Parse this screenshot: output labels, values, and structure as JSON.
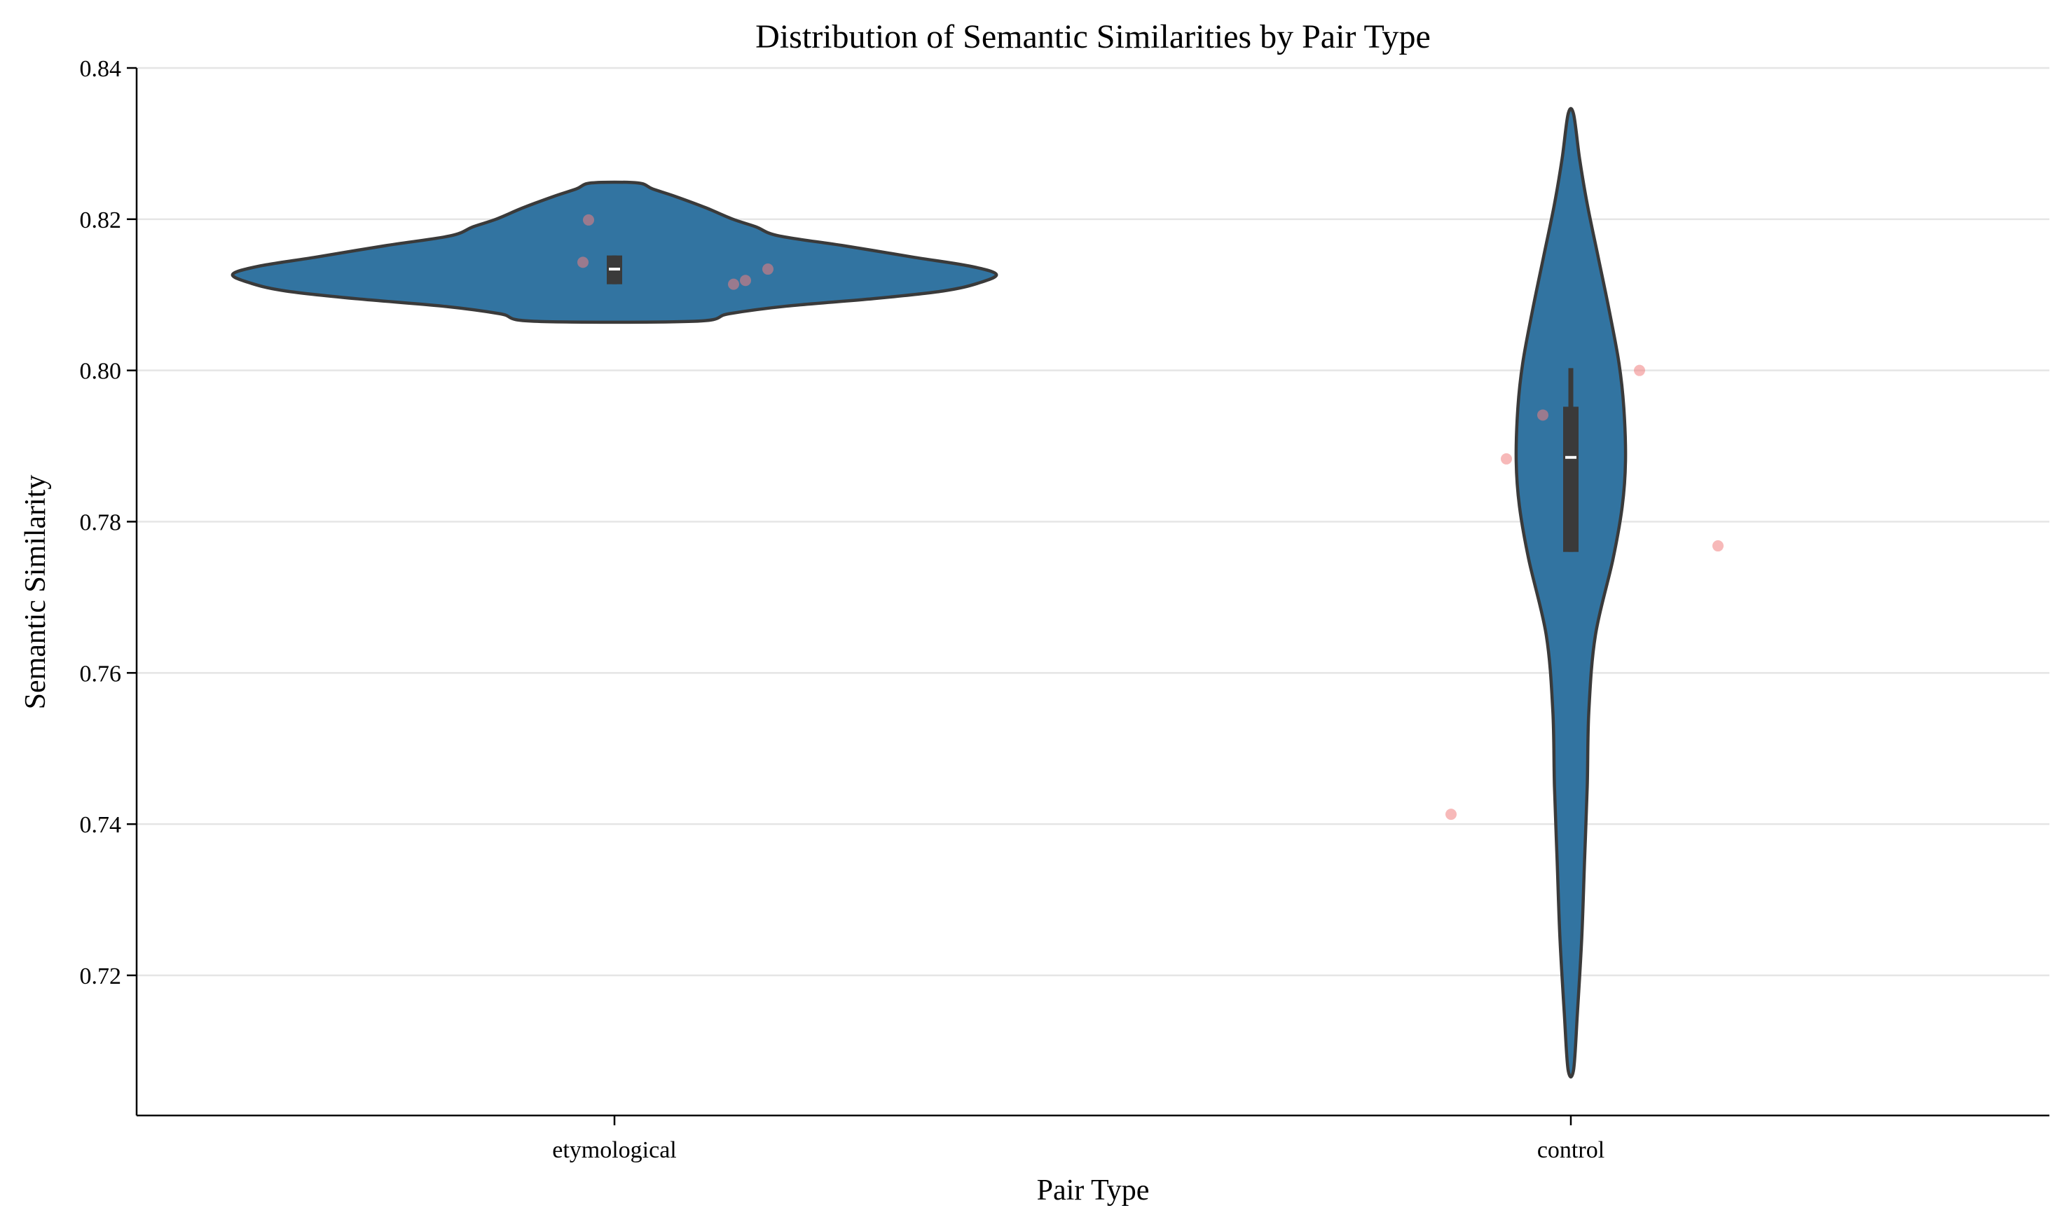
{
  "chart_data": {
    "type": "violin",
    "title": "Distribution of Semantic Similarities by Pair Type",
    "xlabel": "Pair Type",
    "ylabel": "Semantic Similarity",
    "ylim": [
      0.702,
      0.84
    ],
    "yticks": [
      "0.72",
      "0.74",
      "0.76",
      "0.78",
      "0.80",
      "0.82",
      "0.84"
    ],
    "grid": "horizontal",
    "categories": [
      "etymological",
      "control"
    ],
    "colors": {
      "violin_fill": "#3274a1",
      "violin_edge": "#3a3a3a",
      "box": "#3a3a3a",
      "median": "#ffffff",
      "points": "#f08080",
      "grid": "#e5e5e5"
    },
    "series": [
      {
        "category": "etymological",
        "points": [
          0.8199,
          0.8143,
          0.8114,
          0.8119,
          0.8134
        ],
        "median": 0.8134,
        "q1": 0.8114,
        "q3": 0.8152,
        "whisker_low": 0.8114,
        "whisker_high": 0.8152,
        "density_range": [
          0.8065,
          0.8248
        ],
        "density_profile": [
          [
            0.8065,
            0.21
          ],
          [
            0.8075,
            0.3
          ],
          [
            0.8085,
            0.45
          ],
          [
            0.8095,
            0.68
          ],
          [
            0.8105,
            0.86
          ],
          [
            0.8115,
            0.95
          ],
          [
            0.8127,
            1.0
          ],
          [
            0.8138,
            0.93
          ],
          [
            0.815,
            0.78
          ],
          [
            0.8165,
            0.6
          ],
          [
            0.8178,
            0.43
          ],
          [
            0.819,
            0.37
          ],
          [
            0.82,
            0.31
          ],
          [
            0.8215,
            0.24
          ],
          [
            0.823,
            0.16
          ],
          [
            0.824,
            0.1
          ],
          [
            0.8248,
            0.06
          ]
        ]
      },
      {
        "category": "control",
        "points": [
          0.7883,
          0.7941,
          0.8,
          0.7768,
          0.7413
        ],
        "median": 0.7885,
        "q1": 0.776,
        "q3": 0.7952,
        "whisker_low": 0.776,
        "whisker_high": 0.8003,
        "density_range": [
          0.7075,
          0.8339
        ],
        "density_profile": [
          [
            0.7075,
            0.05
          ],
          [
            0.715,
            0.12
          ],
          [
            0.725,
            0.2
          ],
          [
            0.735,
            0.25
          ],
          [
            0.745,
            0.3
          ],
          [
            0.755,
            0.33
          ],
          [
            0.765,
            0.45
          ],
          [
            0.775,
            0.77
          ],
          [
            0.782,
            0.94
          ],
          [
            0.788,
            1.0
          ],
          [
            0.795,
            0.97
          ],
          [
            0.801,
            0.88
          ],
          [
            0.808,
            0.7
          ],
          [
            0.815,
            0.5
          ],
          [
            0.822,
            0.3
          ],
          [
            0.828,
            0.16
          ],
          [
            0.8339,
            0.05
          ]
        ]
      }
    ]
  }
}
